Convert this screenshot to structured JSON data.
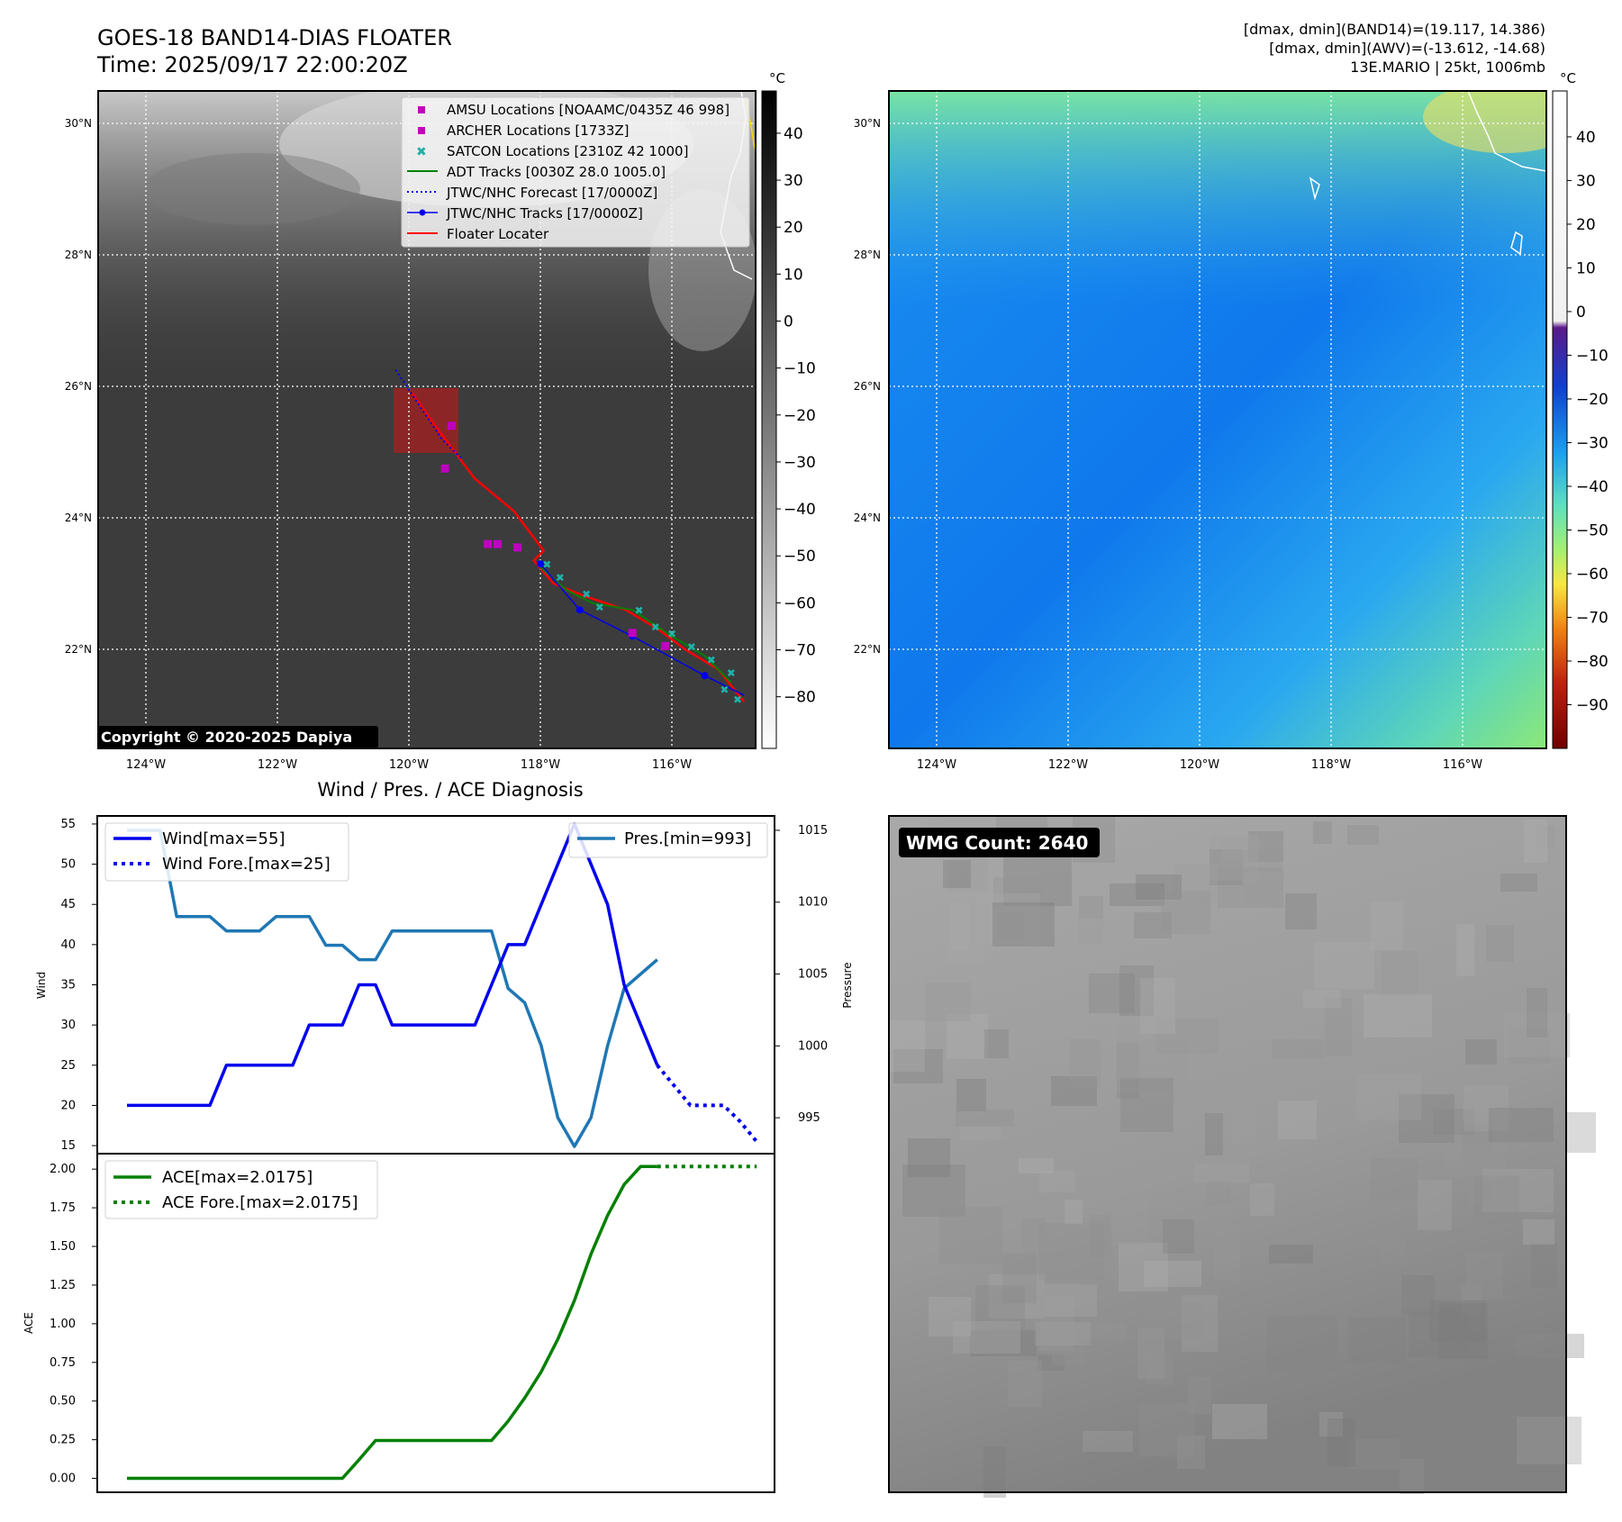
{
  "header": {
    "title": "GOES-18 BAND14-DIAS FLOATER",
    "time": "Time: 2025/09/17 22:00:20Z",
    "stats_band14": "[dmax, dmin](BAND14)=(19.117, 14.386)",
    "stats_awv": "[dmax, dmin](AWV)=(-13.612, -14.68)",
    "storm_info": "13E.MARIO | 25kt, 1006mb"
  },
  "map_left": {
    "lat_labels": [
      "30°N",
      "28°N",
      "26°N",
      "24°N",
      "22°N"
    ],
    "lon_labels": [
      "124°W",
      "122°W",
      "120°W",
      "118°W",
      "116°W"
    ],
    "copyright": "Copyright © 2020-2025 Dapiya",
    "legend": [
      "AMSU Locations [NOAAMC/0435Z 46 998]",
      "ARCHER Locations [1733Z]",
      "SATCON Locations [2310Z 42 1000]",
      "ADT Tracks [0030Z 28.0 1005.0]",
      "JTWC/NHC Forecast [17/0000Z]",
      "JTWC/NHC Tracks [17/0000Z]",
      "Floater Locater"
    ],
    "colorbar_unit": "°C",
    "colorbar_ticks": [
      "40",
      "30",
      "20",
      "10",
      "0",
      "−10",
      "−20",
      "−30",
      "−40",
      "−50",
      "−60",
      "−70",
      "−80"
    ]
  },
  "map_right": {
    "lat_labels": [
      "30°N",
      "28°N",
      "26°N",
      "24°N",
      "22°N"
    ],
    "lon_labels": [
      "124°W",
      "122°W",
      "120°W",
      "118°W",
      "116°W"
    ],
    "colorbar_unit": "°C",
    "colorbar_ticks": [
      "40",
      "30",
      "20",
      "10",
      "0",
      "−10",
      "−20",
      "−30",
      "−40",
      "−50",
      "−60",
      "−70",
      "−80",
      "−90"
    ]
  },
  "wmg": {
    "label": "WMG Count: 2640"
  },
  "colors": {
    "wind": "#0000ee",
    "pressure": "#1f77b4",
    "ace": "#008000",
    "track_red": "#ff0000",
    "adt_green": "#008000",
    "amsu_magenta": "#c000c0",
    "satcon_cyan": "#20b2aa"
  },
  "chart_data": [
    {
      "type": "line",
      "title": "Wind / Pres. / ACE Diagnosis",
      "ylabel": "Wind",
      "y2label": "Pressure",
      "ylim": [
        14,
        56
      ],
      "y2lim": [
        992.5,
        1016
      ],
      "yticks": [
        15,
        20,
        25,
        30,
        35,
        40,
        45,
        50,
        55
      ],
      "y2ticks": [
        995,
        1000,
        1005,
        1010,
        1015
      ],
      "series": [
        {
          "name": "Wind[max=55]",
          "axis": "left",
          "x": [
            0,
            1,
            2,
            3,
            4,
            5,
            6,
            7,
            8,
            9,
            10,
            11,
            12,
            13,
            14,
            15,
            16,
            17,
            18,
            19,
            20,
            21,
            22,
            23,
            24,
            25,
            26,
            27,
            28,
            29,
            30,
            31,
            32
          ],
          "values": [
            20,
            20,
            20,
            20,
            20,
            20,
            25,
            25,
            25,
            25,
            25,
            30,
            30,
            30,
            35,
            35,
            30,
            30,
            30,
            30,
            30,
            30,
            35,
            40,
            40,
            45,
            50,
            55,
            50,
            45,
            35,
            30,
            25
          ]
        },
        {
          "name": "Wind Fore.[max=25]",
          "axis": "left",
          "style": "dotted",
          "x": [
            32,
            33,
            34,
            35,
            36,
            37,
            38
          ],
          "values": [
            25,
            22.5,
            20,
            20,
            20,
            18,
            15.5
          ]
        },
        {
          "name": "Pres.[min=993]",
          "axis": "right",
          "x": [
            0,
            1,
            2,
            3,
            4,
            5,
            6,
            7,
            8,
            9,
            10,
            11,
            12,
            13,
            14,
            15,
            16,
            17,
            18,
            19,
            20,
            21,
            22,
            23,
            24,
            25,
            26,
            27,
            28,
            29,
            30,
            31,
            32
          ],
          "values": [
            1015,
            1015,
            1015,
            1009,
            1009,
            1009,
            1008,
            1008,
            1008,
            1009,
            1009,
            1009,
            1007,
            1007,
            1006,
            1006,
            1008,
            1008,
            1008,
            1008,
            1008,
            1008,
            1008,
            1004,
            1003,
            1000,
            995,
            993,
            995,
            1000,
            1004,
            1005,
            1006
          ]
        }
      ]
    },
    {
      "type": "line",
      "ylabel": "ACE",
      "ylim": [
        -0.09,
        2.1
      ],
      "yticks": [
        0.0,
        0.25,
        0.5,
        0.75,
        1.0,
        1.25,
        1.5,
        1.75,
        2.0
      ],
      "ytick_labels": [
        "0.00",
        "0.25",
        "0.50",
        "0.75",
        "1.00",
        "1.25",
        "1.50",
        "1.75",
        "2.00"
      ],
      "series": [
        {
          "name": "ACE[max=2.0175]",
          "x": [
            0,
            1,
            2,
            3,
            4,
            5,
            6,
            7,
            8,
            9,
            10,
            11,
            12,
            13,
            14,
            15,
            16,
            17,
            18,
            19,
            20,
            21,
            22,
            23,
            24,
            25,
            26,
            27,
            28,
            29,
            30,
            31,
            32
          ],
          "values": [
            0,
            0,
            0,
            0,
            0,
            0,
            0,
            0,
            0,
            0,
            0,
            0,
            0,
            0,
            0.12,
            0.245,
            0.245,
            0.245,
            0.245,
            0.245,
            0.245,
            0.245,
            0.245,
            0.37,
            0.52,
            0.69,
            0.9,
            1.15,
            1.45,
            1.7,
            1.9,
            2.0175,
            2.0175
          ]
        },
        {
          "name": "ACE Fore.[max=2.0175]",
          "style": "dotted",
          "x": [
            32,
            33,
            34,
            35,
            36,
            37,
            38
          ],
          "values": [
            2.0175,
            2.0175,
            2.0175,
            2.0175,
            2.0175,
            2.0175,
            2.0175
          ]
        }
      ]
    }
  ]
}
